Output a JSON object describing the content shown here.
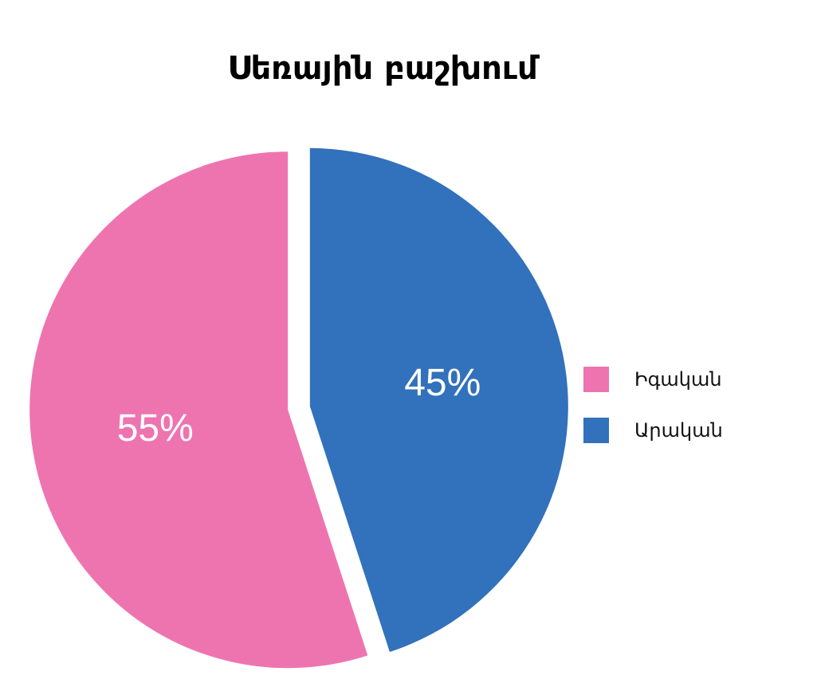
{
  "chart_data": {
    "type": "pie",
    "title": "Սեռային բաշխում",
    "categories": [
      "Իգական",
      "Արական"
    ],
    "values": [
      55,
      45
    ],
    "value_labels": [
      "55%",
      "45%"
    ],
    "colors": [
      "#ee74b0",
      "#3271bb"
    ],
    "start_angle_deg": 0,
    "direction": "counterclockwise",
    "exploded": true,
    "legend": {
      "placement": "right",
      "items": [
        {
          "label": "Իգական",
          "color": "#ee74b0"
        },
        {
          "label": "Արական",
          "color": "#3271bb"
        }
      ]
    }
  }
}
